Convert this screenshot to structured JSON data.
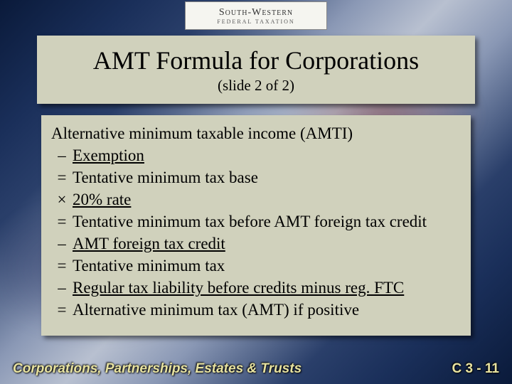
{
  "logo": {
    "top": "South-Western",
    "bottom": "FEDERAL TAXATION"
  },
  "title": {
    "main": "AMT Formula for Corporations",
    "sub": "(slide 2 of 2)"
  },
  "formula": {
    "first_line": "Alternative minimum taxable income (AMTI)",
    "rows": [
      {
        "op": "–",
        "text": "Exemption",
        "underline": true
      },
      {
        "op": "=",
        "text": "Tentative minimum tax base",
        "underline": false
      },
      {
        "op": "×",
        "text": "20% rate",
        "underline": true
      },
      {
        "op": "=",
        "text": "Tentative minimum tax before AMT foreign tax credit",
        "underline": false
      },
      {
        "op": "–",
        "text": "AMT foreign tax credit",
        "underline": true
      },
      {
        "op": "=",
        "text": "Tentative minimum tax",
        "underline": false
      },
      {
        "op": "–",
        "text": "Regular tax liability before credits minus reg. FTC",
        "underline": true
      },
      {
        "op": "=",
        "text": "Alternative minimum  tax (AMT) if positive",
        "underline": false
      }
    ]
  },
  "footer": {
    "left": "Corporations, Partnerships, Estates & Trusts",
    "right": "C 3 - 11"
  },
  "colors": {
    "panel_bg": "#d0d1bc",
    "footer_text": "#e8e3a0",
    "text": "#000000"
  },
  "fonts": {
    "title_size_pt": 36,
    "subtitle_size_pt": 21,
    "body_size_pt": 23,
    "footer_size_pt": 19,
    "body_family": "Times New Roman",
    "footer_family": "Arial"
  }
}
